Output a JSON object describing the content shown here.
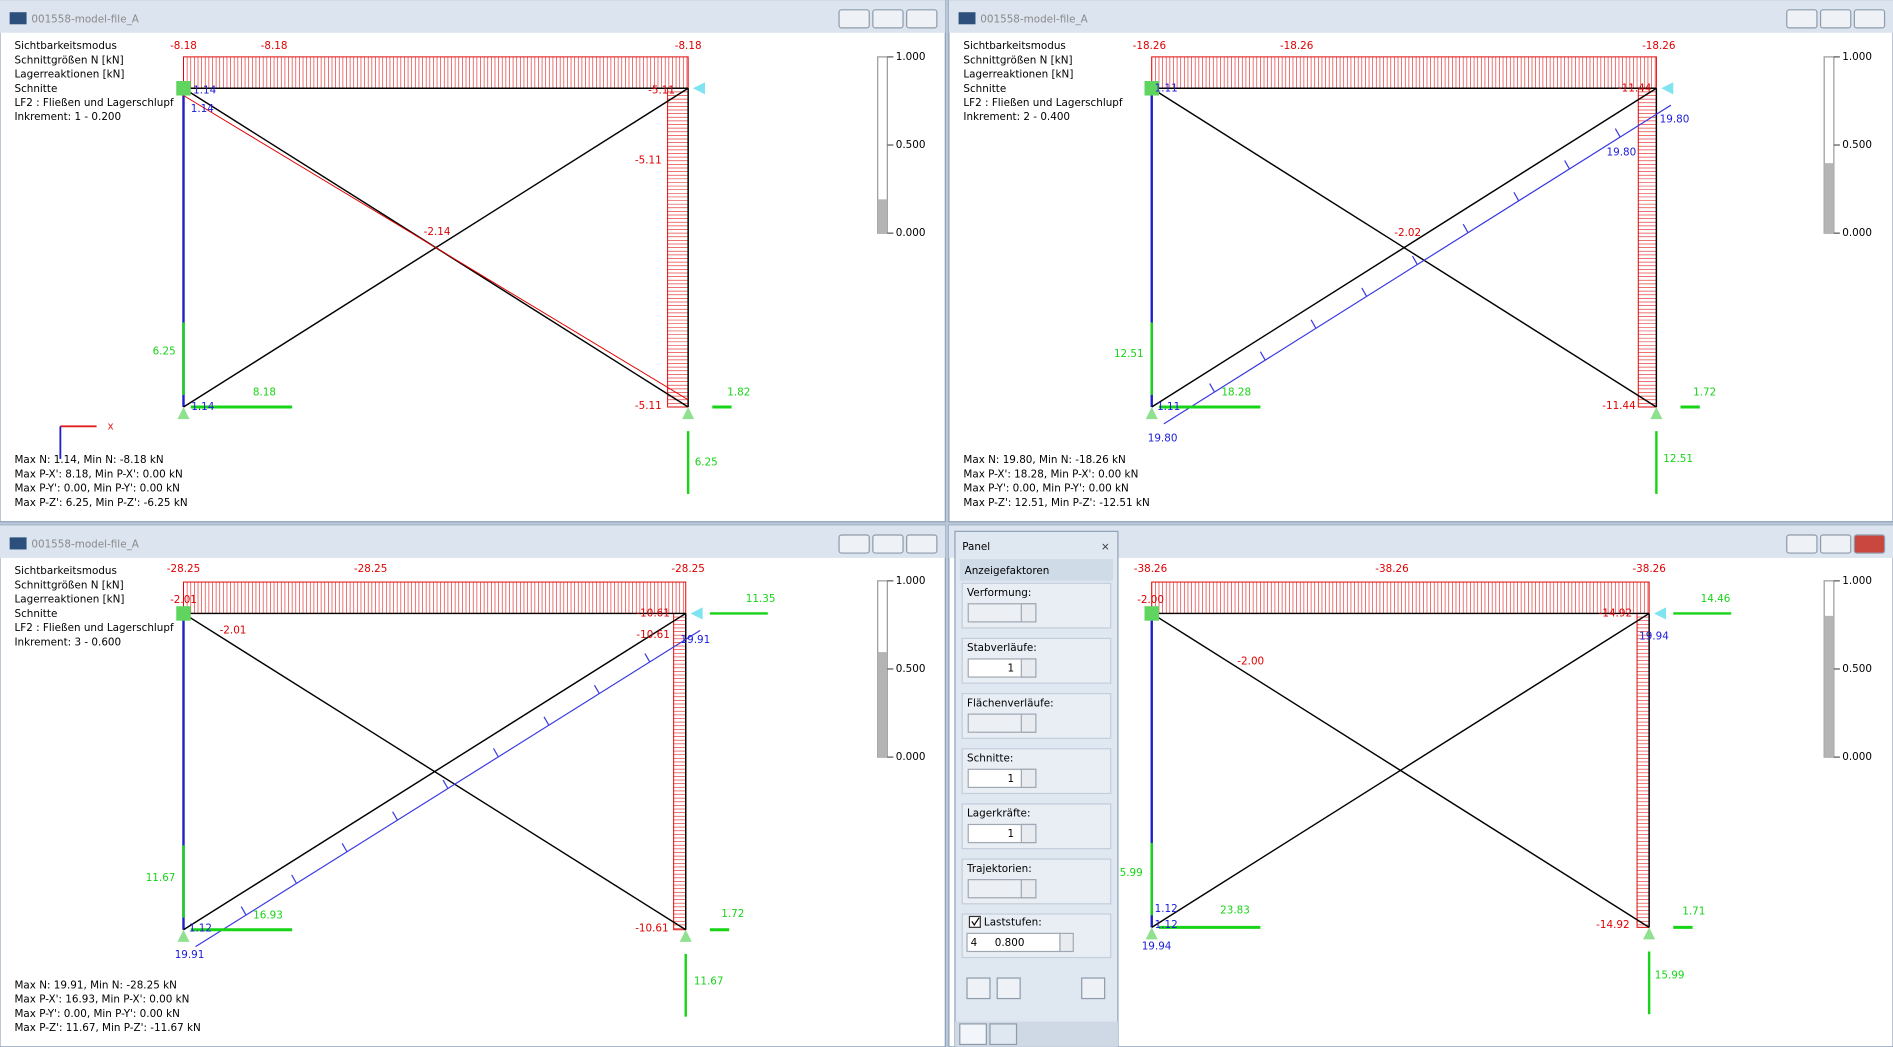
{
  "windows": [
    {
      "title": "001558-model-file_A",
      "info": [
        "Sichtbarkeitsmodus",
        "Schnittgrößen N [kN]",
        "Lagerreaktionen [kN]",
        "Schnitte",
        "LF2 : Fließen und Lagerschlupf",
        "Inkrement: 1 - 0.200"
      ],
      "labels": [
        "-8.18",
        "-8.18",
        "-8.18",
        "1.14",
        "1.14",
        "-5.11",
        "-5.11",
        "-2.14",
        "6.25",
        "8.18",
        "1.14",
        "-5.11",
        "1.82",
        "6.25"
      ],
      "summary": [
        "Max N: 1.14, Min N: -8.18 kN",
        "Max P-X': 8.18, Min P-X': 0.00 kN",
        "Max P-Y': 0.00, Min P-Y': 0.00 kN",
        "Max P-Z': 6.25, Min P-Z': -6.25 kN"
      ],
      "scale": [
        "1.000",
        "0.500",
        "0.000"
      ]
    },
    {
      "title": "001558-model-file_A",
      "info": [
        "Sichtbarkeitsmodus",
        "Schnittgrößen N [kN]",
        "Lagerreaktionen [kN]",
        "Schnitte",
        "LF2 : Fließen und Lagerschlupf",
        "Inkrement: 2 - 0.400"
      ],
      "labels": [
        "-18.26",
        "-18.26",
        "-18.26",
        "1.11",
        "-11.44",
        "19.80",
        "19.80",
        "-2.02",
        "12.51",
        "18.28",
        "1.11",
        "-11.44",
        "1.72",
        "19.80",
        "12.51"
      ],
      "summary": [
        "Max N: 19.80, Min N: -18.26 kN",
        "Max P-X': 18.28, Min P-X': 0.00 kN",
        "Max P-Y': 0.00, Min P-Y': 0.00 kN",
        "Max P-Z': 12.51, Min P-Z': -12.51 kN"
      ],
      "scale": [
        "1.000",
        "0.500",
        "0.000"
      ]
    },
    {
      "title": "001558-model-file_A",
      "info": [
        "Sichtbarkeitsmodus",
        "Schnittgrößen N [kN]",
        "Lagerreaktionen [kN]",
        "Schnitte",
        "LF2 : Fließen und Lagerschlupf",
        "Inkrement: 3 - 0.600"
      ],
      "labels": [
        "-28.25",
        "-28.25",
        "-28.25",
        "-2.01",
        "-2.01",
        "-10.61",
        "-10.61",
        "19.91",
        "11.35",
        "11.67",
        "16.93",
        "1.12",
        "-10.61",
        "1.72",
        "19.91",
        "11.67"
      ],
      "summary": [
        "Max N: 19.91, Min N: -28.25 kN",
        "Max P-X': 16.93, Min P-X': 0.00 kN",
        "Max P-Y': 0.00, Min P-Y': 0.00 kN",
        "Max P-Z': 11.67, Min P-Z': -11.67 kN"
      ],
      "scale": [
        "1.000",
        "0.500",
        "0.000"
      ]
    },
    {
      "labels": [
        "-38.26",
        "-38.26",
        "-38.26",
        "-2.00",
        "-2.00",
        "-14.92",
        "14.46",
        "19.94",
        "5.99",
        "1.12",
        "23.83",
        "1.12",
        "-14.92",
        "1.71",
        "19.94",
        "15.99"
      ],
      "scale": [
        "1.000",
        "0.500",
        "0.000"
      ]
    }
  ],
  "axis_label": "x",
  "panel": {
    "title": "Panel",
    "section": "Anzeigefaktoren",
    "fields": [
      {
        "label": "Verformung:"
      },
      {
        "label": "Stabverläufe:",
        "value": "1"
      },
      {
        "label": "Flächenverläufe:"
      },
      {
        "label": "Schnitte:",
        "value": "1"
      },
      {
        "label": "Lagerkräfte:",
        "value": "1"
      },
      {
        "label": "Trajektorien:"
      }
    ],
    "laststufen": {
      "label": "Laststufen:",
      "step": "4",
      "factor": "0.800"
    }
  }
}
